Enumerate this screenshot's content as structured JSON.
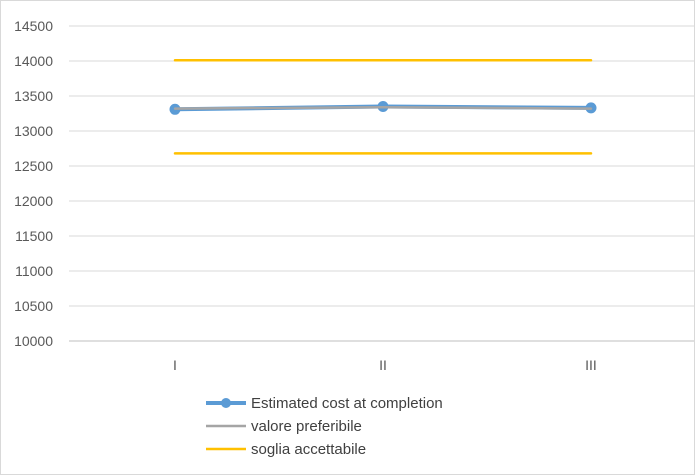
{
  "chart_data": {
    "type": "line",
    "title": "",
    "xlabel": "",
    "ylabel": "",
    "categories": [
      "I",
      "II",
      "III"
    ],
    "ylim": [
      10000,
      14500
    ],
    "yticks": [
      10000,
      10500,
      11000,
      11500,
      12000,
      12500,
      13000,
      13500,
      14000,
      14500
    ],
    "grid": "horizontal",
    "legend_position": "bottom-left",
    "series": [
      {
        "name": "Estimated cost at completion",
        "values": [
          13310,
          13350,
          13330
        ],
        "color": "#5b9bd5",
        "markers": true
      },
      {
        "name": "valore preferibile",
        "values": [
          13320,
          13340,
          13320
        ],
        "color": "#a5a5a5",
        "markers": false
      },
      {
        "name": "soglia accettabile",
        "values": [
          14010,
          14010,
          14010
        ],
        "color": "#ffc000",
        "markers": false
      },
      {
        "name": "soglia accettabile",
        "values": [
          12680,
          12680,
          12680
        ],
        "color": "#ffc000",
        "markers": false
      }
    ]
  }
}
